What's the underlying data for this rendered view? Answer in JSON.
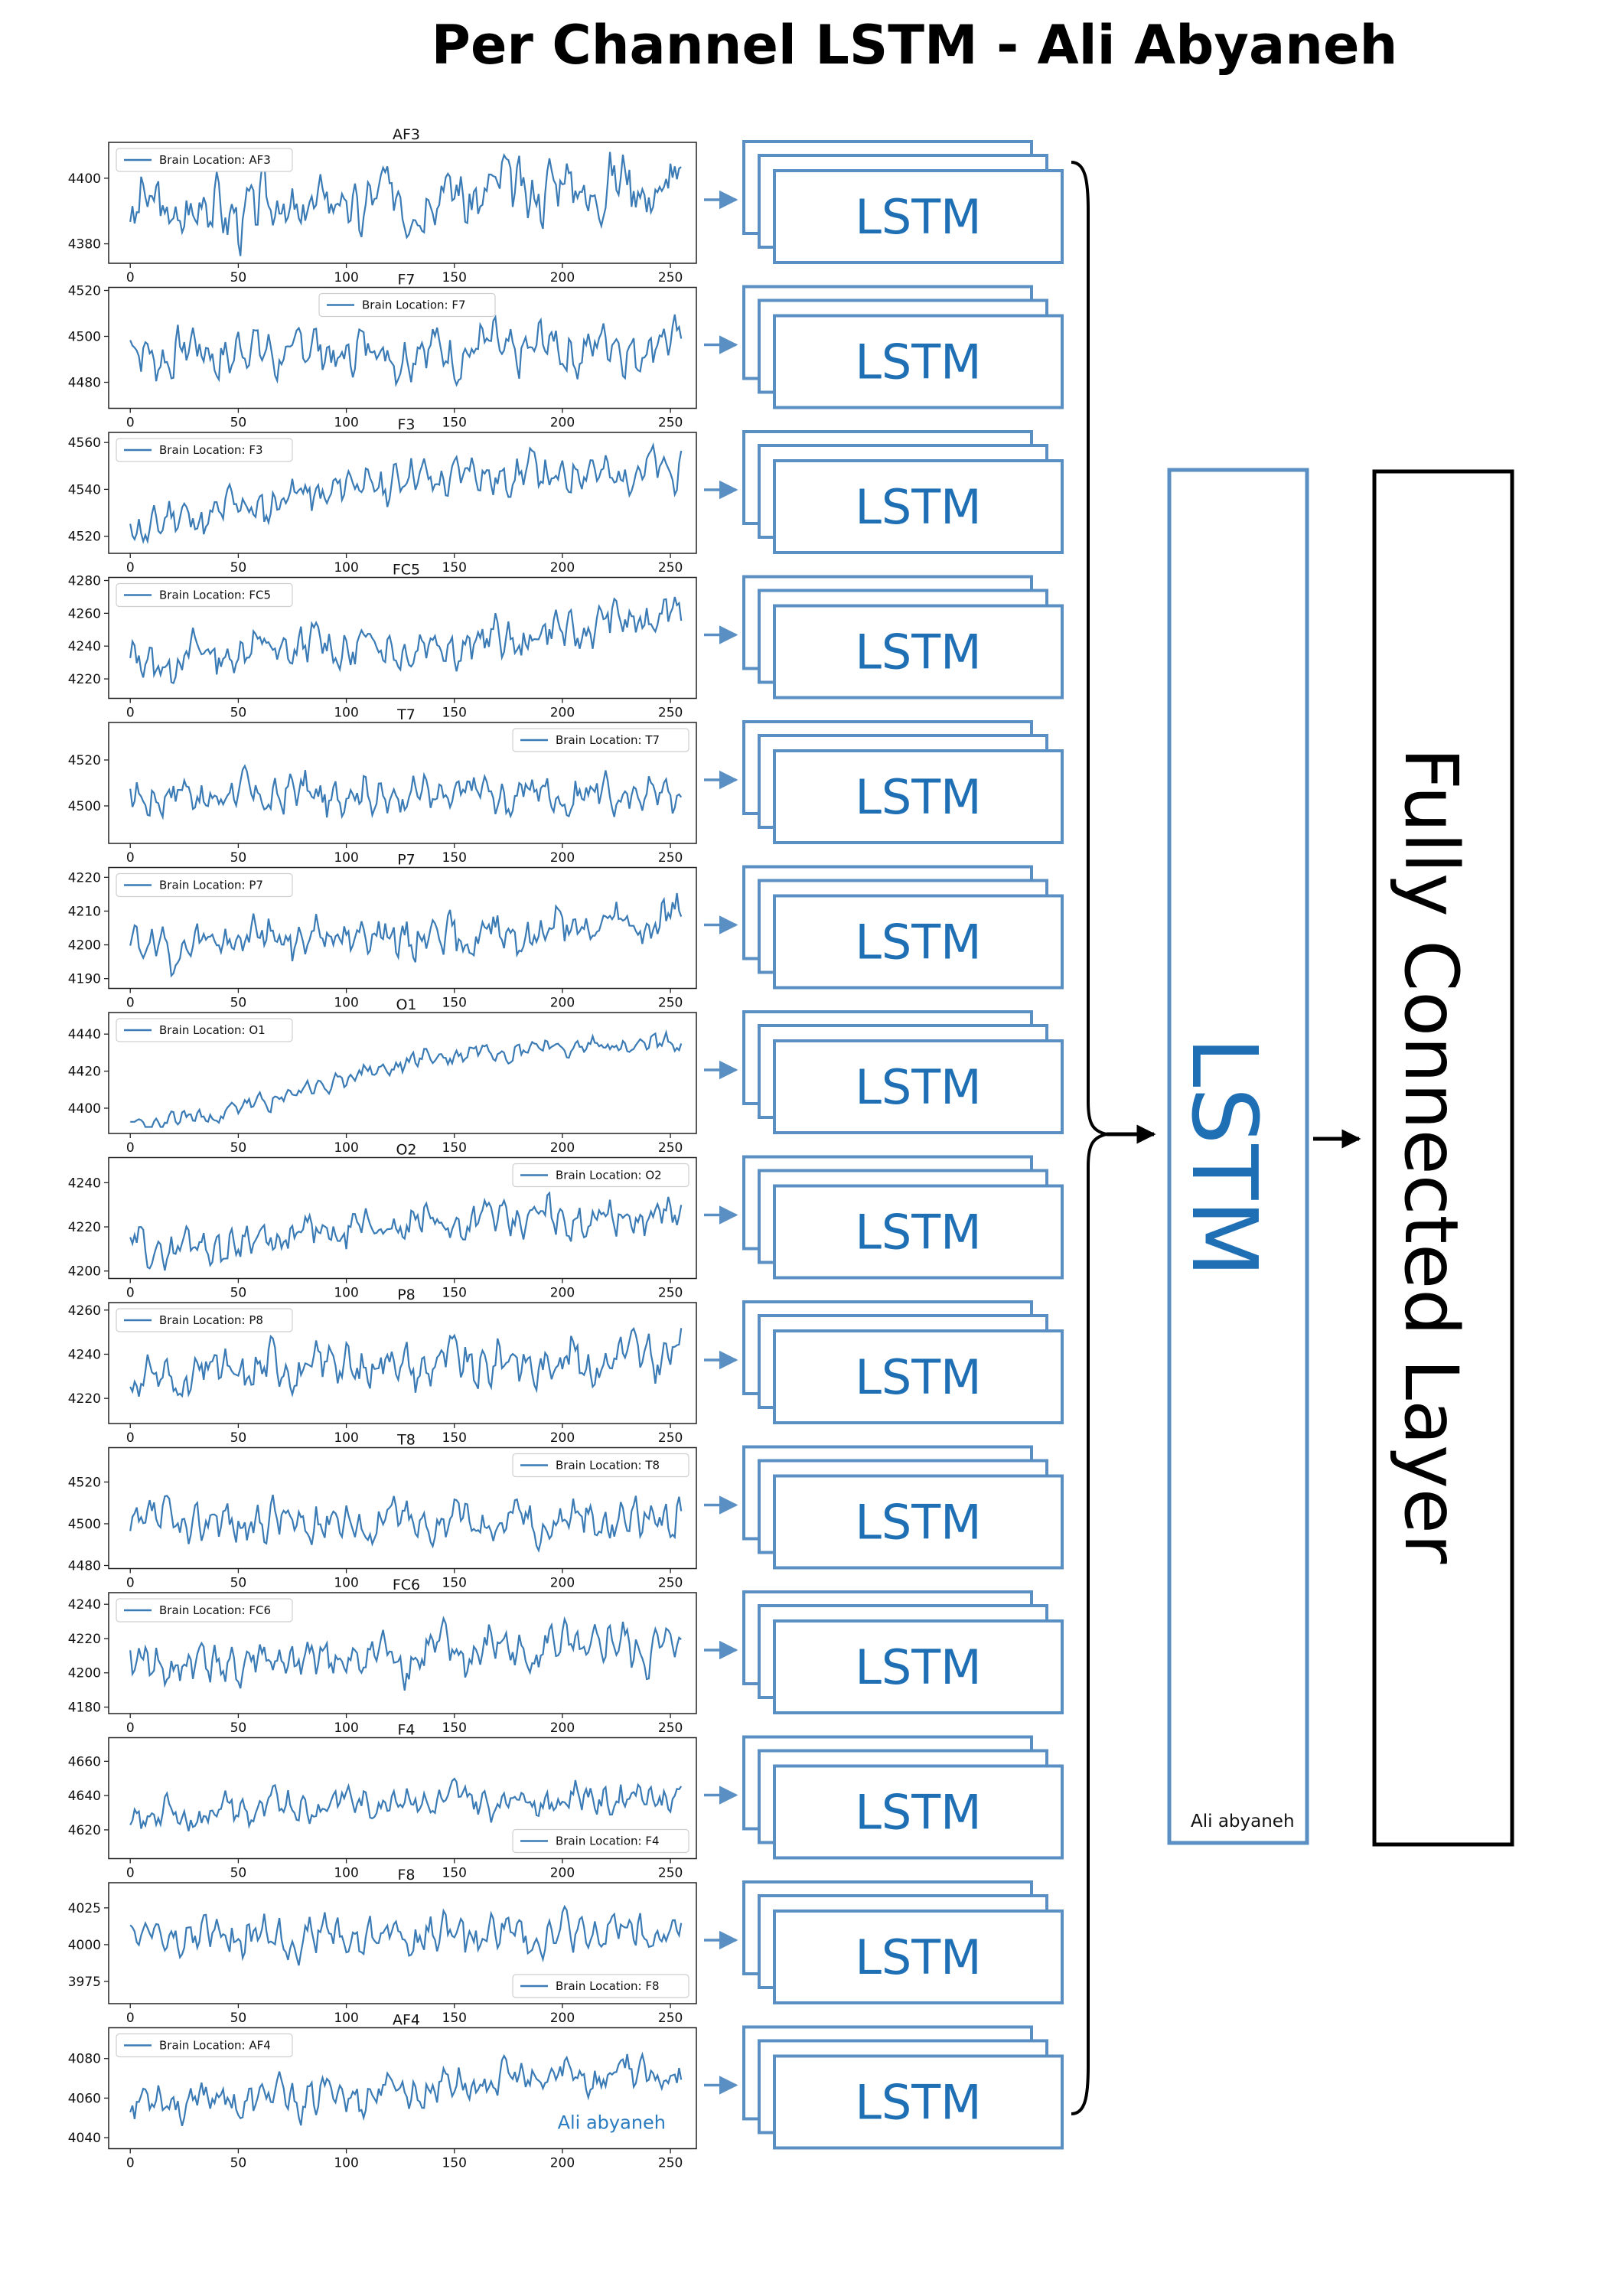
{
  "title": "Per Channel LSTM - Ali Abyaneh",
  "x_ticks": [
    "0",
    "50",
    "100",
    "150",
    "200",
    "250"
  ],
  "channels": [
    {
      "name": "AF3",
      "legend": "Brain Location: AF3",
      "legend_pos": "top-left",
      "y_ticks": [
        "4400",
        "4380"
      ],
      "y_range": [
        4375,
        4410
      ],
      "y_ticks_values": [
        4400,
        4380
      ],
      "base": 4390,
      "amp": 9,
      "drift": 8,
      "seed": 3
    },
    {
      "name": "F7",
      "legend": "Brain Location: F7",
      "legend_pos": "top-center",
      "y_ticks": [
        "4520",
        "4500",
        "4480"
      ],
      "y_range": [
        4470,
        4520
      ],
      "y_ticks_values": [
        4520,
        4500,
        4480
      ],
      "base": 4492,
      "amp": 10,
      "drift": 4,
      "seed": 7
    },
    {
      "name": "F3",
      "legend": "Brain Location: F3",
      "legend_pos": "top-left",
      "y_ticks": [
        "4560",
        "4540",
        "4520"
      ],
      "y_range": [
        4514,
        4563
      ],
      "y_ticks_values": [
        4560,
        4540,
        4520
      ],
      "base": 4528,
      "amp": 8,
      "drift": 25,
      "seed": 11
    },
    {
      "name": "FC5",
      "legend": "Brain Location: FC5",
      "legend_pos": "top-left",
      "y_ticks": [
        "4280",
        "4260",
        "4240",
        "4220"
      ],
      "y_range": [
        4210,
        4280
      ],
      "y_ticks_values": [
        4280,
        4260,
        4240,
        4220
      ],
      "base": 4225,
      "amp": 12,
      "drift": 35,
      "seed": 13
    },
    {
      "name": "T7",
      "legend": "Brain Location: T7",
      "legend_pos": "top-right",
      "y_ticks": [
        "4520",
        "4500"
      ],
      "y_range": [
        4485,
        4535
      ],
      "y_ticks_values": [
        4520,
        4500
      ],
      "base": 4505,
      "amp": 8,
      "drift": 0,
      "seed": 17
    },
    {
      "name": "P7",
      "legend": "Brain Location: P7",
      "legend_pos": "top-left",
      "y_ticks": [
        "4220",
        "4210",
        "4200",
        "4190"
      ],
      "y_range": [
        4188,
        4222
      ],
      "y_ticks_values": [
        4220,
        4210,
        4200,
        4190
      ],
      "base": 4198,
      "amp": 6,
      "drift": 10,
      "seed": 19
    },
    {
      "name": "O1",
      "legend": "Brain Location: O1",
      "legend_pos": "top-left",
      "y_ticks": [
        "4440",
        "4420",
        "4400"
      ],
      "y_range": [
        4388,
        4450
      ],
      "y_ticks_values": [
        4440,
        4420,
        4400
      ],
      "base": 4396,
      "amp": 5,
      "drift": 45,
      "seed": 23
    },
    {
      "name": "O2",
      "legend": "Brain Location: O2",
      "legend_pos": "top-right",
      "y_ticks": [
        "4240",
        "4220",
        "4200"
      ],
      "y_range": [
        4198,
        4250
      ],
      "y_ticks_values": [
        4240,
        4220,
        4200
      ],
      "base": 4212,
      "amp": 8,
      "drift": 14,
      "seed": 29
    },
    {
      "name": "P8",
      "legend": "Brain Location: P8",
      "legend_pos": "top-left",
      "y_ticks": [
        "4260",
        "4240",
        "4220"
      ],
      "y_range": [
        4210,
        4262
      ],
      "y_ticks_values": [
        4260,
        4240,
        4220
      ],
      "base": 4228,
      "amp": 10,
      "drift": 14,
      "seed": 31
    },
    {
      "name": "T8",
      "legend": "Brain Location: T8",
      "legend_pos": "top-right",
      "y_ticks": [
        "4520",
        "4500",
        "4480"
      ],
      "y_range": [
        4480,
        4535
      ],
      "y_ticks_values": [
        4520,
        4500,
        4480
      ],
      "base": 4500,
      "amp": 10,
      "drift": 2,
      "seed": 37
    },
    {
      "name": "FC6",
      "legend": "Brain Location: FC6",
      "legend_pos": "top-left",
      "y_ticks": [
        "4240",
        "4220",
        "4200",
        "4180"
      ],
      "y_range": [
        4178,
        4245
      ],
      "y_ticks_values": [
        4240,
        4220,
        4200,
        4180
      ],
      "base": 4205,
      "amp": 13,
      "drift": 10,
      "seed": 41
    },
    {
      "name": "F4",
      "legend": "Brain Location: F4",
      "legend_pos": "bottom-right",
      "y_ticks": [
        "4660",
        "4640",
        "4620"
      ],
      "y_range": [
        4605,
        4672
      ],
      "y_ticks_values": [
        4660,
        4640,
        4620
      ],
      "base": 4628,
      "amp": 9,
      "drift": 15,
      "seed": 43
    },
    {
      "name": "F8",
      "legend": "Brain Location: F8",
      "legend_pos": "bottom-right",
      "y_ticks": [
        "4025",
        "4000",
        "3975"
      ],
      "y_range": [
        3962,
        4040
      ],
      "y_ticks_values": [
        4025,
        4000,
        3975
      ],
      "base": 4005,
      "amp": 13,
      "drift": 3,
      "seed": 47
    },
    {
      "name": "AF4",
      "legend": "Brain Location: AF4",
      "legend_pos": "top-left",
      "y_ticks": [
        "4080",
        "4060",
        "4040"
      ],
      "y_range": [
        4036,
        4094
      ],
      "y_ticks_values": [
        4080,
        4060,
        4040
      ],
      "base": 4058,
      "amp": 9,
      "drift": 14,
      "seed": 53
    }
  ],
  "plot_watermark": "Ali abyaneh",
  "lstm_label": "LSTM",
  "main_lstm": {
    "label": "LSTM",
    "credit": "Ali abyaneh"
  },
  "fc_layer_label": "Fully Connected Layer",
  "colors": {
    "signal": "#3b7bb5",
    "box_border": "#5a8fc4",
    "lstm_text": "#1f6fb5",
    "arrow": "#5a8fc4"
  }
}
